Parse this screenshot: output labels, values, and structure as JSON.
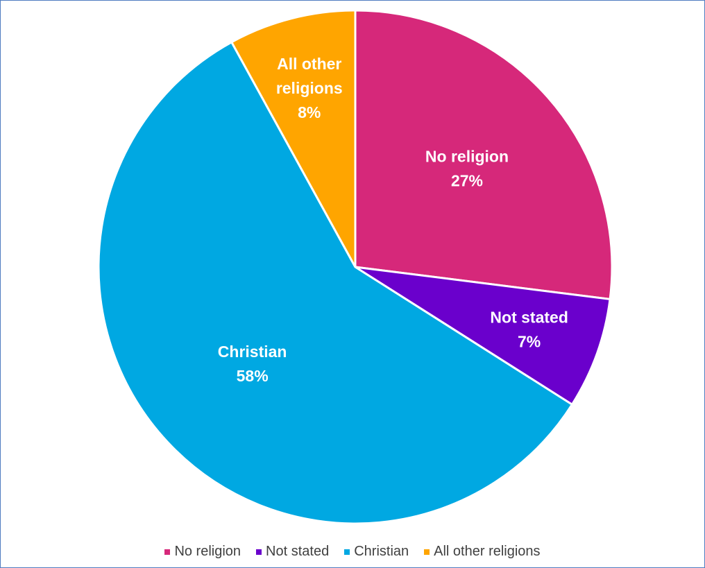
{
  "chart_data": {
    "type": "pie",
    "title": "",
    "legend_position": "bottom",
    "slices": [
      {
        "label": "No religion",
        "value": 27,
        "display": "27%",
        "color": "#d6287a"
      },
      {
        "label": "Not stated",
        "value": 7,
        "display": "7%",
        "color": "#6a00cc"
      },
      {
        "label": "Christian",
        "value": 58,
        "display": "58%",
        "color": "#00a8e2"
      },
      {
        "label": "All other religions",
        "value": 8,
        "display": "8%",
        "color": "#ffa500"
      }
    ],
    "data_labels": [
      {
        "lines": [
          "No religion",
          "27%"
        ]
      },
      {
        "lines": [
          "Not stated",
          "7%"
        ]
      },
      {
        "lines": [
          "Christian",
          "58%"
        ]
      },
      {
        "lines": [
          "All other",
          "religions",
          "8%"
        ]
      }
    ]
  },
  "legend": {
    "items": [
      {
        "label": "No religion",
        "color": "#d6287a"
      },
      {
        "label": "Not stated",
        "color": "#6a00cc"
      },
      {
        "label": "Christian",
        "color": "#00a8e2"
      },
      {
        "label": "All other religions",
        "color": "#ffa500"
      }
    ]
  }
}
